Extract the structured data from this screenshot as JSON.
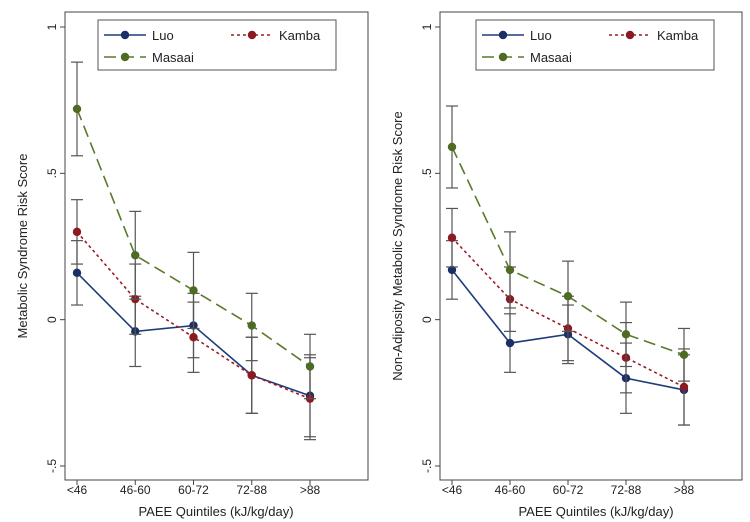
{
  "chart_data": [
    {
      "type": "line",
      "ylabel": "Metabolic Syndrome Risk Score",
      "xlabel": "PAEE Quintiles (kJ/kg/day)",
      "categories": [
        "<46",
        "46-60",
        "60-72",
        "72-88",
        ">88"
      ],
      "ylim": [
        -0.5,
        1
      ],
      "yticks": [
        1,
        0.5,
        0,
        -0.5
      ],
      "ytick_labels": [
        "1",
        ".5",
        "0",
        "-.5"
      ],
      "legend_position": "top",
      "series": [
        {
          "name": "Luo",
          "style": "solid",
          "color": "#1f3d7a",
          "marker": "#1a2f66",
          "values": [
            0.16,
            -0.04,
            -0.02,
            -0.19,
            -0.26
          ],
          "ci_low": [
            0.05,
            -0.16,
            -0.13,
            -0.32,
            -0.4
          ],
          "ci_high": [
            0.27,
            0.08,
            0.09,
            -0.06,
            -0.12
          ]
        },
        {
          "name": "Kamba",
          "style": "dotted",
          "color": "#9c1c25",
          "marker": "#8b1a22",
          "values": [
            0.3,
            0.07,
            -0.06,
            -0.19,
            -0.27
          ],
          "ci_low": [
            0.19,
            -0.05,
            -0.18,
            -0.32,
            -0.41
          ],
          "ci_high": [
            0.41,
            0.19,
            0.06,
            -0.06,
            -0.13
          ]
        },
        {
          "name": "Masaai",
          "style": "dashed",
          "color": "#5a7a2a",
          "marker": "#4d6b22",
          "values": [
            0.72,
            0.22,
            0.1,
            -0.02,
            -0.16
          ],
          "ci_low": [
            0.56,
            0.07,
            -0.03,
            -0.14,
            -0.27
          ],
          "ci_high": [
            0.88,
            0.37,
            0.23,
            0.09,
            -0.05
          ]
        }
      ]
    },
    {
      "type": "line",
      "ylabel": "Non-Adiposity Metabolic Syndrome Risk Score",
      "xlabel": "PAEE Quintiles (kJ/kg/day)",
      "categories": [
        "<46",
        "46-60",
        "60-72",
        "72-88",
        ">88"
      ],
      "ylim": [
        -0.5,
        1
      ],
      "yticks": [
        1,
        0.5,
        0,
        -0.5
      ],
      "ytick_labels": [
        "1",
        ".5",
        "0",
        "-.5"
      ],
      "legend_position": "top",
      "series": [
        {
          "name": "Luo",
          "style": "solid",
          "color": "#1f3d7a",
          "marker": "#1a2f66",
          "values": [
            0.17,
            -0.08,
            -0.05,
            -0.2,
            -0.24
          ],
          "ci_low": [
            0.07,
            -0.18,
            -0.15,
            -0.32,
            -0.36
          ],
          "ci_high": [
            0.27,
            0.02,
            0.05,
            -0.08,
            -0.12
          ]
        },
        {
          "name": "Kamba",
          "style": "dotted",
          "color": "#9c1c25",
          "marker": "#8b1a22",
          "values": [
            0.28,
            0.07,
            -0.03,
            -0.13,
            -0.23
          ],
          "ci_low": [
            0.18,
            -0.04,
            -0.14,
            -0.25,
            -0.36
          ],
          "ci_high": [
            0.38,
            0.18,
            0.08,
            -0.01,
            -0.1
          ]
        },
        {
          "name": "Masaai",
          "style": "dashed",
          "color": "#5a7a2a",
          "marker": "#4d6b22",
          "values": [
            0.59,
            0.17,
            0.08,
            -0.05,
            -0.12
          ],
          "ci_low": [
            0.45,
            0.04,
            -0.04,
            -0.16,
            -0.21
          ],
          "ci_high": [
            0.73,
            0.3,
            0.2,
            0.06,
            -0.03
          ]
        }
      ]
    }
  ]
}
